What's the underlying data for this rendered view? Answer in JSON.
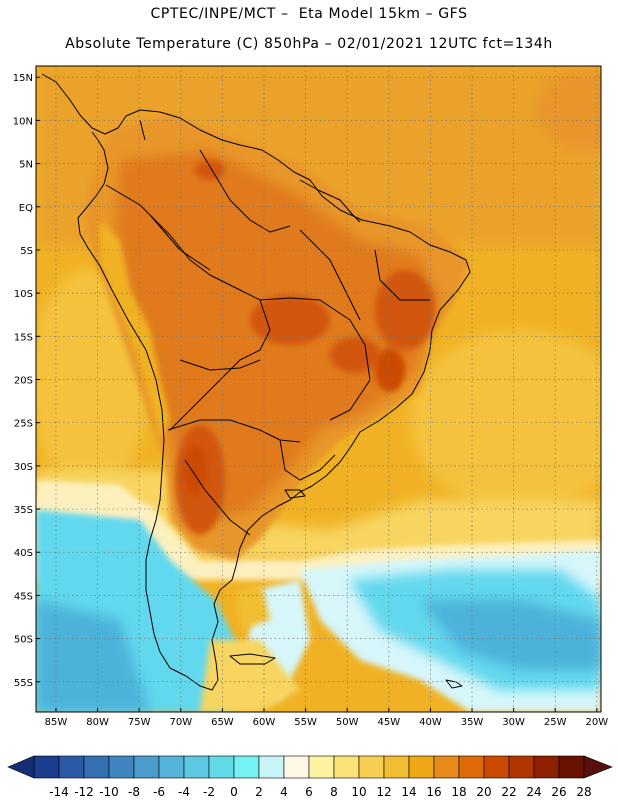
{
  "title_line1": "CPTEC/INPE/MCT –  Eta Model 15km – GFS",
  "title_line2": "Absolute Temperature (C) 850hPa – 02/01/2021 12UTC fct=134h",
  "lat_labels": [
    "15N",
    "10N",
    "5N",
    "EQ",
    "5S",
    "10S",
    "15S",
    "20S",
    "25S",
    "30S",
    "35S",
    "40S",
    "45S",
    "50S",
    "55S"
  ],
  "lat_values": [
    15,
    10,
    5,
    0,
    -5,
    -10,
    -15,
    -20,
    -25,
    -30,
    -35,
    -40,
    -45,
    -50,
    -55
  ],
  "lon_labels": [
    "85W",
    "80W",
    "75W",
    "70W",
    "65W",
    "60W",
    "55W",
    "50W",
    "45W",
    "40W",
    "35W",
    "30W",
    "25W",
    "20W"
  ],
  "lon_values": [
    -85,
    -80,
    -75,
    -70,
    -65,
    -60,
    -55,
    -50,
    -45,
    -40,
    -35,
    -30,
    -25,
    -20
  ],
  "colorbar": {
    "labels": [
      "-14",
      "-12",
      "-10",
      "-8",
      "-6",
      "-4",
      "-2",
      "0",
      "2",
      "4",
      "6",
      "8",
      "10",
      "12",
      "14",
      "16",
      "18",
      "20",
      "22",
      "24",
      "26",
      "28"
    ],
    "colors": [
      "#1a3d8f",
      "#2a5aa5",
      "#3470b3",
      "#3f85c0",
      "#4a9ccc",
      "#55b3d8",
      "#5ec8e2",
      "#62dbe8",
      "#74f2f4",
      "#c8f4f8",
      "#fff8e6",
      "#fff2a0",
      "#fbe276",
      "#f6cf52",
      "#f1bd33",
      "#eea815",
      "#e88a1a",
      "#df6b08",
      "#cc4a00",
      "#b23400",
      "#8e2000",
      "#6a1200"
    ]
  },
  "palette": {
    "warm_interior": "#e07a1c",
    "hot_core": "#d2570e",
    "orange": "#e8962a",
    "gold": "#f0b224",
    "light_yellow": "#f7d560",
    "cream": "#fdf0bf",
    "pale_cyan": "#d6f6fa",
    "cyan": "#62d8ee",
    "blue": "#4bb2da"
  }
}
